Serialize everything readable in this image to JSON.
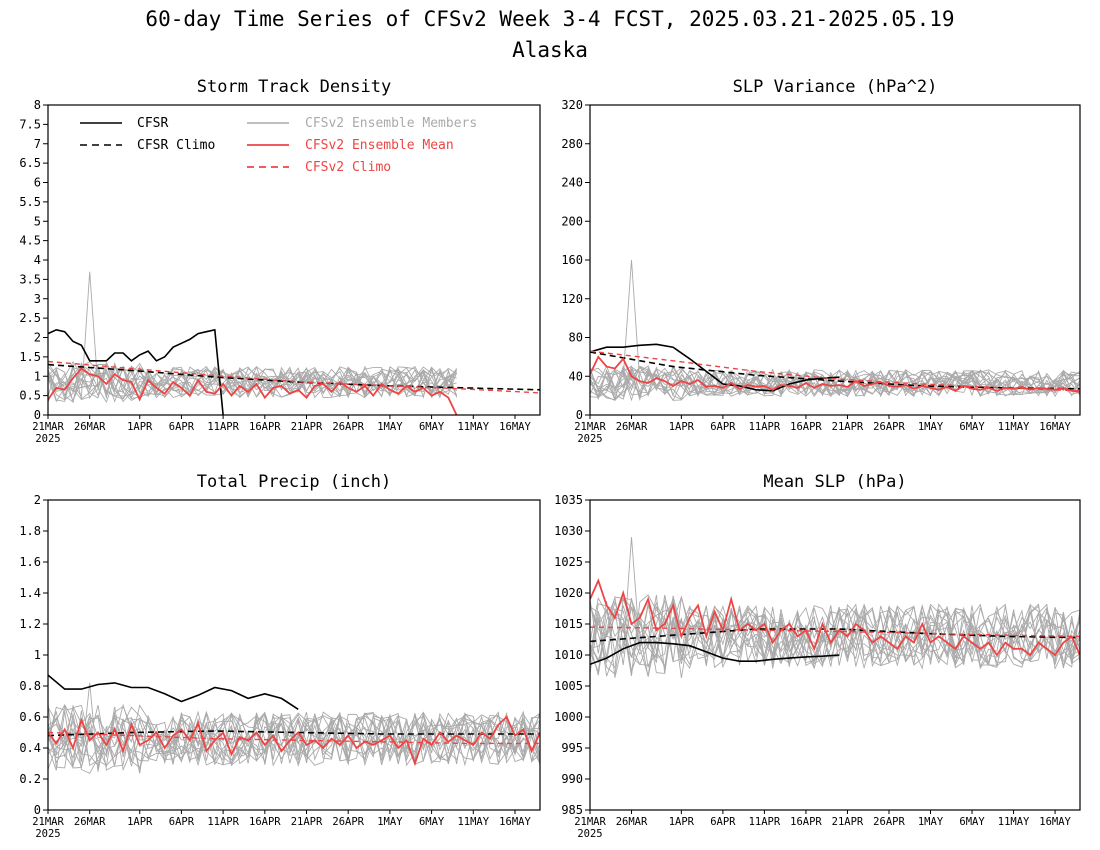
{
  "figure": {
    "title_line1": "60-day Time Series of CFSv2 Week 3-4 FCST, 2025.03.21-2025.05.19",
    "title_line2": "Alaska"
  },
  "legend": {
    "cfsr": "CFSR",
    "cfsr_climo": "CFSR Climo",
    "members": "CFSv2 Ensemble Members",
    "ens_mean": "CFSv2 Ensemble Mean",
    "cfsv2_climo": "CFSv2 Climo"
  },
  "colors": {
    "cfsr": "#000000",
    "members": "#aaaaaa",
    "ens_mean": "#ee4444",
    "climo_red": "#ee4444"
  },
  "x_axis": {
    "tick_labels": [
      "21MAR",
      "26MAR",
      "1APR",
      "6APR",
      "11APR",
      "16APR",
      "21APR",
      "26APR",
      "1MAY",
      "6MAY",
      "11MAY",
      "16MAY"
    ],
    "tick_days": [
      0,
      5,
      11,
      16,
      21,
      26,
      31,
      36,
      41,
      46,
      51,
      56
    ],
    "year_label": "2025",
    "days": 60
  },
  "chart_data": [
    {
      "type": "line",
      "title": "Storm Track Density",
      "ylim": [
        0,
        8
      ],
      "yticks": [
        "0",
        "0.5",
        "1",
        "1.5",
        "2",
        "2.5",
        "3",
        "3.5",
        "4",
        "4.5",
        "5",
        "5.5",
        "6",
        "6.5",
        "7",
        "7.5",
        "8"
      ],
      "ytick_values": [
        0,
        0.5,
        1,
        1.5,
        2,
        2.5,
        3,
        3.5,
        4,
        4.5,
        5,
        5.5,
        6,
        6.5,
        7,
        7.5,
        8
      ],
      "series": [
        {
          "name": "CFSR",
          "style": "cfsr",
          "x": [
            0,
            1,
            2,
            3,
            4,
            5,
            6,
            7,
            8,
            9,
            10,
            11,
            12,
            13,
            14,
            15,
            16,
            17,
            18,
            19,
            20,
            21
          ],
          "y": [
            2.1,
            2.2,
            2.15,
            1.9,
            1.8,
            1.4,
            1.4,
            1.4,
            1.6,
            1.6,
            1.4,
            1.55,
            1.65,
            1.4,
            1.5,
            1.75,
            1.85,
            1.95,
            2.1,
            2.15,
            2.2,
            0
          ]
        },
        {
          "name": "CFSR Climo",
          "style": "cfsr_climo",
          "x": [
            0,
            10,
            20,
            30,
            40,
            50,
            59
          ],
          "y": [
            1.3,
            1.15,
            0.98,
            0.85,
            0.76,
            0.7,
            0.65
          ]
        },
        {
          "name": "CFSv2 Climo",
          "style": "cfsv2_climo",
          "x": [
            0,
            10,
            20,
            30,
            40,
            50,
            59
          ],
          "y": [
            1.38,
            1.2,
            1.02,
            0.86,
            0.76,
            0.67,
            0.57
          ]
        },
        {
          "name": "CFSv2 Ensemble Mean",
          "style": "ens_mean",
          "x": [
            0,
            1,
            2,
            3,
            4,
            5,
            6,
            7,
            8,
            9,
            10,
            11,
            12,
            13,
            14,
            15,
            16,
            17,
            18,
            19,
            20,
            21,
            22,
            23,
            24,
            25,
            26,
            27,
            28,
            29,
            30,
            31,
            32,
            33,
            34,
            35,
            36,
            37,
            38,
            39,
            40,
            41,
            42,
            43,
            44,
            45,
            46,
            47,
            48,
            49
          ],
          "y": [
            0.4,
            0.7,
            0.65,
            0.95,
            1.2,
            1.05,
            1.0,
            0.8,
            1.05,
            0.9,
            0.85,
            0.4,
            0.9,
            0.7,
            0.55,
            0.85,
            0.7,
            0.5,
            0.9,
            0.6,
            0.55,
            0.8,
            0.5,
            0.75,
            0.6,
            0.8,
            0.45,
            0.7,
            0.75,
            0.55,
            0.65,
            0.45,
            0.75,
            0.8,
            0.6,
            0.85,
            0.7,
            0.6,
            0.75,
            0.5,
            0.8,
            0.65,
            0.55,
            0.75,
            0.6,
            0.7,
            0.5,
            0.6,
            0.45,
            0.0
          ]
        }
      ],
      "members": {
        "days": 50,
        "center": 0.85,
        "spread": 0.7,
        "max": 3.7
      }
    },
    {
      "type": "line",
      "title": "SLP Variance (hPa^2)",
      "ylim": [
        0,
        320
      ],
      "yticks": [
        "0",
        "40",
        "80",
        "120",
        "160",
        "200",
        "240",
        "280",
        "320"
      ],
      "ytick_values": [
        0,
        40,
        80,
        120,
        160,
        200,
        240,
        280,
        320
      ],
      "series": [
        {
          "name": "CFSR",
          "style": "cfsr",
          "x": [
            0,
            2,
            4,
            6,
            8,
            10,
            12,
            14,
            16,
            18,
            20,
            22,
            24,
            26,
            28,
            30
          ],
          "y": [
            65,
            70,
            70,
            72,
            73,
            70,
            58,
            45,
            32,
            30,
            26,
            25,
            32,
            36,
            38,
            39
          ]
        },
        {
          "name": "CFSR Climo",
          "style": "cfsr_climo",
          "x": [
            0,
            10,
            20,
            30,
            40,
            50,
            59
          ],
          "y": [
            65,
            50,
            41,
            35,
            30,
            28,
            27
          ]
        },
        {
          "name": "CFSv2 Climo",
          "style": "cfsv2_climo",
          "x": [
            0,
            10,
            20,
            30,
            40,
            50,
            59
          ],
          "y": [
            66,
            56,
            45,
            37,
            32,
            28,
            25
          ]
        },
        {
          "name": "CFSv2 Ensemble Mean",
          "style": "ens_mean",
          "x": [
            0,
            1,
            2,
            3,
            4,
            5,
            6,
            7,
            8,
            9,
            10,
            11,
            12,
            13,
            14,
            15,
            16,
            17,
            18,
            19,
            20,
            21,
            22,
            23,
            24,
            25,
            26,
            27,
            28,
            29,
            30,
            31,
            32,
            33,
            34,
            35,
            36,
            37,
            38,
            39,
            40,
            41,
            42,
            43,
            44,
            45,
            46,
            47,
            48,
            49,
            50,
            51,
            52,
            53,
            54,
            55,
            56,
            57,
            58,
            59
          ],
          "y": [
            42,
            60,
            50,
            48,
            58,
            40,
            35,
            33,
            38,
            35,
            30,
            35,
            32,
            36,
            29,
            30,
            28,
            33,
            27,
            31,
            29,
            30,
            26,
            31,
            30,
            28,
            33,
            28,
            32,
            30,
            31,
            29,
            35,
            30,
            32,
            34,
            30,
            29,
            31,
            27,
            30,
            28,
            26,
            29,
            25,
            30,
            27,
            26,
            28,
            25,
            28,
            27,
            29,
            26,
            28,
            27,
            26,
            28,
            25,
            24
          ]
        }
      ],
      "members": {
        "days": 60,
        "center": 33,
        "spread": 24,
        "max": 160
      }
    },
    {
      "type": "line",
      "title": "Total Precip (inch)",
      "ylim": [
        0,
        2
      ],
      "yticks": [
        "0",
        "0.2",
        "0.4",
        "0.6",
        "0.8",
        "1",
        "1.2",
        "1.4",
        "1.6",
        "1.8",
        "2"
      ],
      "ytick_values": [
        0,
        0.2,
        0.4,
        0.6,
        0.8,
        1.0,
        1.2,
        1.4,
        1.6,
        1.8,
        2.0
      ],
      "series": [
        {
          "name": "CFSR",
          "style": "cfsr",
          "x": [
            0,
            2,
            4,
            6,
            8,
            10,
            12,
            14,
            16,
            18,
            20,
            22,
            24,
            26,
            28,
            30
          ],
          "y": [
            0.87,
            0.78,
            0.78,
            0.81,
            0.82,
            0.79,
            0.79,
            0.75,
            0.7,
            0.74,
            0.79,
            0.77,
            0.72,
            0.75,
            0.72,
            0.65
          ]
        },
        {
          "name": "CFSR Climo",
          "style": "cfsr_climo",
          "x": [
            0,
            10,
            20,
            30,
            40,
            50,
            59
          ],
          "y": [
            0.48,
            0.5,
            0.51,
            0.5,
            0.49,
            0.49,
            0.49
          ]
        },
        {
          "name": "CFSv2 Climo",
          "style": "cfsv2_climo",
          "x": [
            0,
            10,
            20,
            30,
            40,
            50,
            59
          ],
          "y": [
            0.5,
            0.48,
            0.46,
            0.45,
            0.44,
            0.43,
            0.43
          ]
        },
        {
          "name": "CFSv2 Ensemble Mean",
          "style": "ens_mean",
          "x": [
            0,
            1,
            2,
            3,
            4,
            5,
            6,
            7,
            8,
            9,
            10,
            11,
            12,
            13,
            14,
            15,
            16,
            17,
            18,
            19,
            20,
            21,
            22,
            23,
            24,
            25,
            26,
            27,
            28,
            29,
            30,
            31,
            32,
            33,
            34,
            35,
            36,
            37,
            38,
            39,
            40,
            41,
            42,
            43,
            44,
            45,
            46,
            47,
            48,
            49,
            50,
            51,
            52,
            53,
            54,
            55,
            56,
            57,
            58,
            59
          ],
          "y": [
            0.5,
            0.43,
            0.52,
            0.4,
            0.58,
            0.45,
            0.5,
            0.42,
            0.52,
            0.38,
            0.55,
            0.42,
            0.45,
            0.5,
            0.4,
            0.48,
            0.52,
            0.45,
            0.56,
            0.38,
            0.45,
            0.5,
            0.36,
            0.47,
            0.45,
            0.5,
            0.42,
            0.48,
            0.38,
            0.45,
            0.5,
            0.42,
            0.45,
            0.4,
            0.46,
            0.42,
            0.48,
            0.4,
            0.44,
            0.42,
            0.45,
            0.48,
            0.4,
            0.45,
            0.3,
            0.46,
            0.42,
            0.5,
            0.44,
            0.48,
            0.45,
            0.42,
            0.5,
            0.46,
            0.55,
            0.6,
            0.48,
            0.52,
            0.38,
            0.5
          ]
        }
      ],
      "members": {
        "days": 60,
        "center": 0.46,
        "spread": 0.3,
        "max": 0.82
      }
    },
    {
      "type": "line",
      "title": "Mean SLP (hPa)",
      "ylim": [
        985,
        1035
      ],
      "yticks": [
        "985",
        "990",
        "995",
        "1000",
        "1005",
        "1010",
        "1015",
        "1020",
        "1025",
        "1030",
        "1035"
      ],
      "ytick_values": [
        985,
        990,
        995,
        1000,
        1005,
        1010,
        1015,
        1020,
        1025,
        1030,
        1035
      ],
      "series": [
        {
          "name": "CFSR",
          "style": "cfsr",
          "x": [
            0,
            2,
            4,
            6,
            8,
            10,
            12,
            14,
            16,
            18,
            20,
            22,
            24,
            26,
            28,
            30
          ],
          "y": [
            1008.5,
            1009.5,
            1011,
            1012,
            1012,
            1011.8,
            1011.5,
            1010.5,
            1009.5,
            1009,
            1009,
            1009.3,
            1009.5,
            1009.7,
            1009.8,
            1010
          ]
        },
        {
          "name": "CFSR Climo",
          "style": "cfsr_climo",
          "x": [
            0,
            10,
            20,
            30,
            40,
            50,
            59
          ],
          "y": [
            1012.2,
            1013.2,
            1014.2,
            1014.2,
            1013.5,
            1013,
            1012.8
          ]
        },
        {
          "name": "CFSv2 Climo",
          "style": "cfsv2_climo",
          "x": [
            0,
            10,
            20,
            30,
            40,
            50,
            59
          ],
          "y": [
            1014.5,
            1014.3,
            1014,
            1013.8,
            1013.5,
            1013.2,
            1013
          ]
        },
        {
          "name": "CFSv2 Ensemble Mean",
          "style": "ens_mean",
          "x": [
            0,
            1,
            2,
            3,
            4,
            5,
            6,
            7,
            8,
            9,
            10,
            11,
            12,
            13,
            14,
            15,
            16,
            17,
            18,
            19,
            20,
            21,
            22,
            23,
            24,
            25,
            26,
            27,
            28,
            29,
            30,
            31,
            32,
            33,
            34,
            35,
            36,
            37,
            38,
            39,
            40,
            41,
            42,
            43,
            44,
            45,
            46,
            47,
            48,
            49,
            50,
            51,
            52,
            53,
            54,
            55,
            56,
            57,
            58,
            59
          ],
          "y": [
            1019,
            1022,
            1018,
            1016,
            1020,
            1015,
            1016,
            1019,
            1014,
            1015,
            1018,
            1013,
            1016,
            1018,
            1013,
            1017,
            1014,
            1019,
            1014,
            1015,
            1014,
            1015,
            1012,
            1014,
            1015,
            1013,
            1014,
            1011,
            1015,
            1012,
            1014,
            1013,
            1015,
            1014,
            1012,
            1013,
            1012,
            1011,
            1013,
            1012,
            1015,
            1012,
            1013,
            1012,
            1011,
            1013,
            1012,
            1011,
            1012,
            1010,
            1012,
            1011,
            1011,
            1010,
            1012,
            1011,
            1010,
            1012,
            1013,
            1010
          ]
        }
      ],
      "members": {
        "days": 60,
        "center": 1013,
        "spread": 9,
        "max": 1029
      }
    }
  ]
}
